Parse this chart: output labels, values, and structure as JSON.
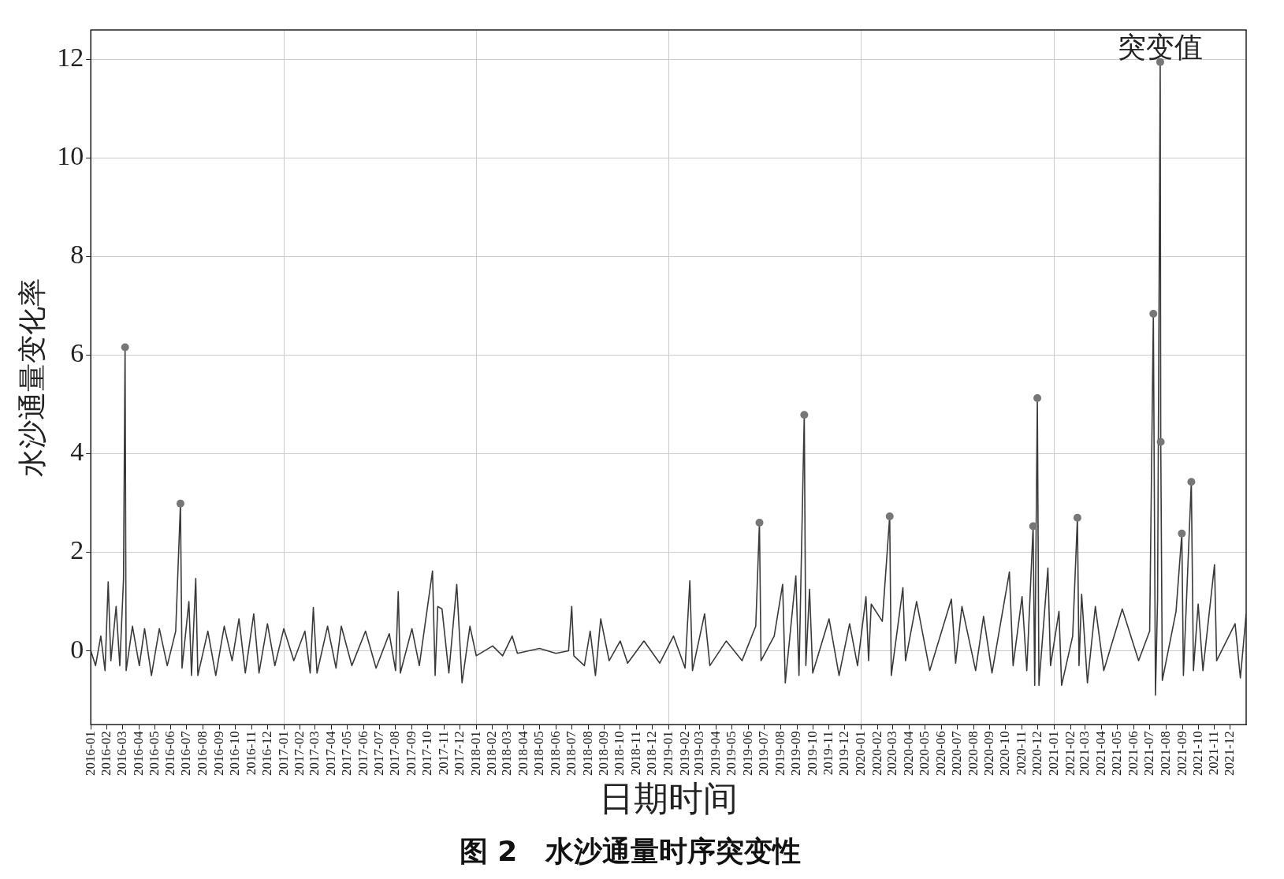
{
  "chart_data": {
    "type": "line",
    "title": "图 2　水沙通量时序突变性",
    "xlabel": "日期时间",
    "ylabel": "水沙通量变化率",
    "xlim": [
      "2016-01-01",
      "2021-12-31"
    ],
    "xticks": [
      "2016-01",
      "2016-02",
      "2016-03",
      "2016-04",
      "2016-05",
      "2016-06",
      "2016-07",
      "2016-08",
      "2016-09",
      "2016-10",
      "2016-11",
      "2016-12",
      "2017-01",
      "2017-02",
      "2017-03",
      "2017-04",
      "2017-05",
      "2017-06",
      "2017-07",
      "2017-08",
      "2017-09",
      "2017-10",
      "2017-11",
      "2017-12",
      "2018-01",
      "2018-02",
      "2018-03",
      "2018-04",
      "2018-05",
      "2018-06",
      "2018-07",
      "2018-08",
      "2018-09",
      "2018-10",
      "2018-11",
      "2018-12",
      "2019-01",
      "2019-02",
      "2019-03",
      "2019-04",
      "2019-05",
      "2019-06",
      "2019-07",
      "2019-08",
      "2019-09",
      "2019-10",
      "2019-11",
      "2019-12",
      "2020-01",
      "2020-02",
      "2020-03",
      "2020-04",
      "2020-05",
      "2020-06",
      "2020-07",
      "2020-08",
      "2020-09",
      "2020-10",
      "2020-11",
      "2020-12",
      "2021-01",
      "2021-02",
      "2021-03",
      "2021-04",
      "2021-05",
      "2021-06",
      "2021-07",
      "2021-08",
      "2021-09",
      "2021-10",
      "2021-11",
      "2021-12"
    ],
    "ylim": [
      -1.5,
      12.6
    ],
    "yticks": [
      0,
      2,
      4,
      6,
      8,
      10,
      12
    ],
    "grid": true,
    "legend": false,
    "series": [
      {
        "color": "#3a3a3a",
        "marker": "none",
        "line_style": "solid",
        "x": [
          "2016-01-01",
          "2016-01-10",
          "2016-01-20",
          "2016-01-28",
          "2016-02-03",
          "2016-02-08",
          "2016-02-18",
          "2016-02-25",
          "2016-03-03",
          "2016-03-06",
          "2016-03-08",
          "2016-03-20",
          "2016-04-02",
          "2016-04-12",
          "2016-04-25",
          "2016-05-10",
          "2016-05-25",
          "2016-06-10",
          "2016-06-19",
          "2016-06-22",
          "2016-07-05",
          "2016-07-10",
          "2016-07-18",
          "2016-07-22",
          "2016-08-10",
          "2016-08-25",
          "2016-09-10",
          "2016-09-25",
          "2016-10-08",
          "2016-10-20",
          "2016-11-05",
          "2016-11-15",
          "2016-12-01",
          "2016-12-15",
          "2017-01-01",
          "2017-01-20",
          "2017-02-10",
          "2017-02-20",
          "2017-02-26",
          "2017-03-05",
          "2017-03-25",
          "2017-04-10",
          "2017-04-20",
          "2017-05-10",
          "2017-06-05",
          "2017-06-25",
          "2017-07-20",
          "2017-08-01",
          "2017-08-06",
          "2017-08-10",
          "2017-09-01",
          "2017-09-15",
          "2017-10-10",
          "2017-10-15",
          "2017-10-20",
          "2017-10-28",
          "2017-11-10",
          "2017-11-25",
          "2017-12-05",
          "2017-12-20",
          "2018-01-01",
          "2018-02-01",
          "2018-02-20",
          "2018-03-10",
          "2018-03-20",
          "2018-05-01",
          "2018-06-01",
          "2018-06-25",
          "2018-07-01",
          "2018-07-05",
          "2018-07-25",
          "2018-08-05",
          "2018-08-15",
          "2018-08-25",
          "2018-09-10",
          "2018-10-01",
          "2018-10-15",
          "2018-11-15",
          "2018-12-15",
          "2019-01-10",
          "2019-02-01",
          "2019-02-10",
          "2019-02-15",
          "2019-03-10",
          "2019-03-20",
          "2019-04-20",
          "2019-05-20",
          "2019-06-15",
          "2019-06-22",
          "2019-06-25",
          "2019-07-20",
          "2019-08-05",
          "2019-08-10",
          "2019-08-30",
          "2019-09-05",
          "2019-09-15",
          "2019-09-18",
          "2019-09-25",
          "2019-10-01",
          "2019-11-01",
          "2019-11-20",
          "2019-12-10",
          "2019-12-25",
          "2020-01-10",
          "2020-01-15",
          "2020-01-20",
          "2020-02-10",
          "2020-02-24",
          "2020-02-27",
          "2020-03-20",
          "2020-03-25",
          "2020-04-15",
          "2020-05-10",
          "2020-06-20",
          "2020-06-28",
          "2020-07-10",
          "2020-08-05",
          "2020-08-20",
          "2020-09-05",
          "2020-10-08",
          "2020-10-15",
          "2020-11-01",
          "2020-11-10",
          "2020-11-22",
          "2020-11-25",
          "2020-11-30",
          "2020-12-03",
          "2020-12-20",
          "2020-12-25",
          "2021-01-10",
          "2021-01-15",
          "2021-02-05",
          "2021-02-14",
          "2021-02-17",
          "2021-02-22",
          "2021-03-05",
          "2021-03-20",
          "2021-04-05",
          "2021-05-10",
          "2021-06-10",
          "2021-07-01",
          "2021-07-08",
          "2021-07-12",
          "2021-07-16",
          "2021-07-21",
          "2021-07-22",
          "2021-07-25",
          "2021-08-20",
          "2021-08-31",
          "2021-09-03",
          "2021-09-18",
          "2021-09-22",
          "2021-10-01",
          "2021-10-10",
          "2021-11-01",
          "2021-11-05",
          "2021-12-10",
          "2021-12-20",
          "2021-12-31"
        ],
        "values": [
          0,
          -0.3,
          0.3,
          -0.4,
          1.4,
          -0.2,
          0.9,
          -0.3,
          1.45,
          6.16,
          -0.4,
          0.5,
          -0.3,
          0.45,
          -0.5,
          0.45,
          -0.3,
          0.4,
          2.99,
          -0.35,
          1.0,
          -0.5,
          1.47,
          -0.5,
          0.4,
          -0.5,
          0.5,
          -0.2,
          0.65,
          -0.45,
          0.75,
          -0.45,
          0.55,
          -0.3,
          0.45,
          -0.2,
          0.4,
          -0.45,
          0.88,
          -0.45,
          0.5,
          -0.35,
          0.5,
          -0.3,
          0.4,
          -0.35,
          0.35,
          -0.4,
          1.2,
          -0.45,
          0.45,
          -0.3,
          1.62,
          -0.5,
          0.9,
          0.85,
          -0.45,
          1.35,
          -0.65,
          0.5,
          -0.1,
          0.1,
          -0.1,
          0.3,
          -0.05,
          0.05,
          -0.05,
          0,
          0.9,
          -0.1,
          -0.3,
          0.4,
          -0.5,
          0.65,
          -0.2,
          0.2,
          -0.25,
          0.2,
          -0.25,
          0.3,
          -0.35,
          1.42,
          -0.4,
          0.75,
          -0.3,
          0.2,
          -0.2,
          0.5,
          2.6,
          -0.2,
          0.3,
          1.35,
          -0.65,
          1.52,
          -0.5,
          4.79,
          -0.3,
          1.25,
          -0.45,
          0.65,
          -0.5,
          0.55,
          -0.3,
          1.1,
          -0.2,
          0.95,
          0.6,
          2.73,
          -0.5,
          1.28,
          -0.2,
          1.0,
          -0.4,
          1.05,
          -0.25,
          0.9,
          -0.4,
          0.7,
          -0.45,
          1.6,
          -0.3,
          1.1,
          -0.4,
          2.53,
          -0.7,
          5.13,
          -0.7,
          1.68,
          -0.3,
          0.8,
          -0.7,
          0.3,
          2.7,
          -0.3,
          1.15,
          -0.65,
          0.9,
          -0.4,
          0.85,
          -0.2,
          0.4,
          6.84,
          -0.9,
          1.05,
          11.95,
          4.24,
          -0.6,
          0.8,
          2.38,
          -0.5,
          3.43,
          -0.4,
          0.95,
          -0.4,
          1.75,
          -0.2,
          0.55,
          -0.55,
          0.75
        ]
      },
      {
        "type": "scatter",
        "name": "突变值",
        "color": "#777777",
        "marker": "circle",
        "x": [
          "2016-03-06",
          "2016-06-19",
          "2019-06-22",
          "2019-09-15",
          "2020-02-24",
          "2020-11-22",
          "2020-11-30",
          "2021-02-14",
          "2021-07-08",
          "2021-07-21",
          "2021-07-22",
          "2021-08-31",
          "2021-09-18"
        ],
        "values": [
          6.16,
          2.99,
          2.6,
          4.79,
          2.73,
          2.53,
          5.13,
          2.7,
          6.84,
          11.95,
          4.24,
          2.38,
          3.43
        ]
      }
    ]
  }
}
